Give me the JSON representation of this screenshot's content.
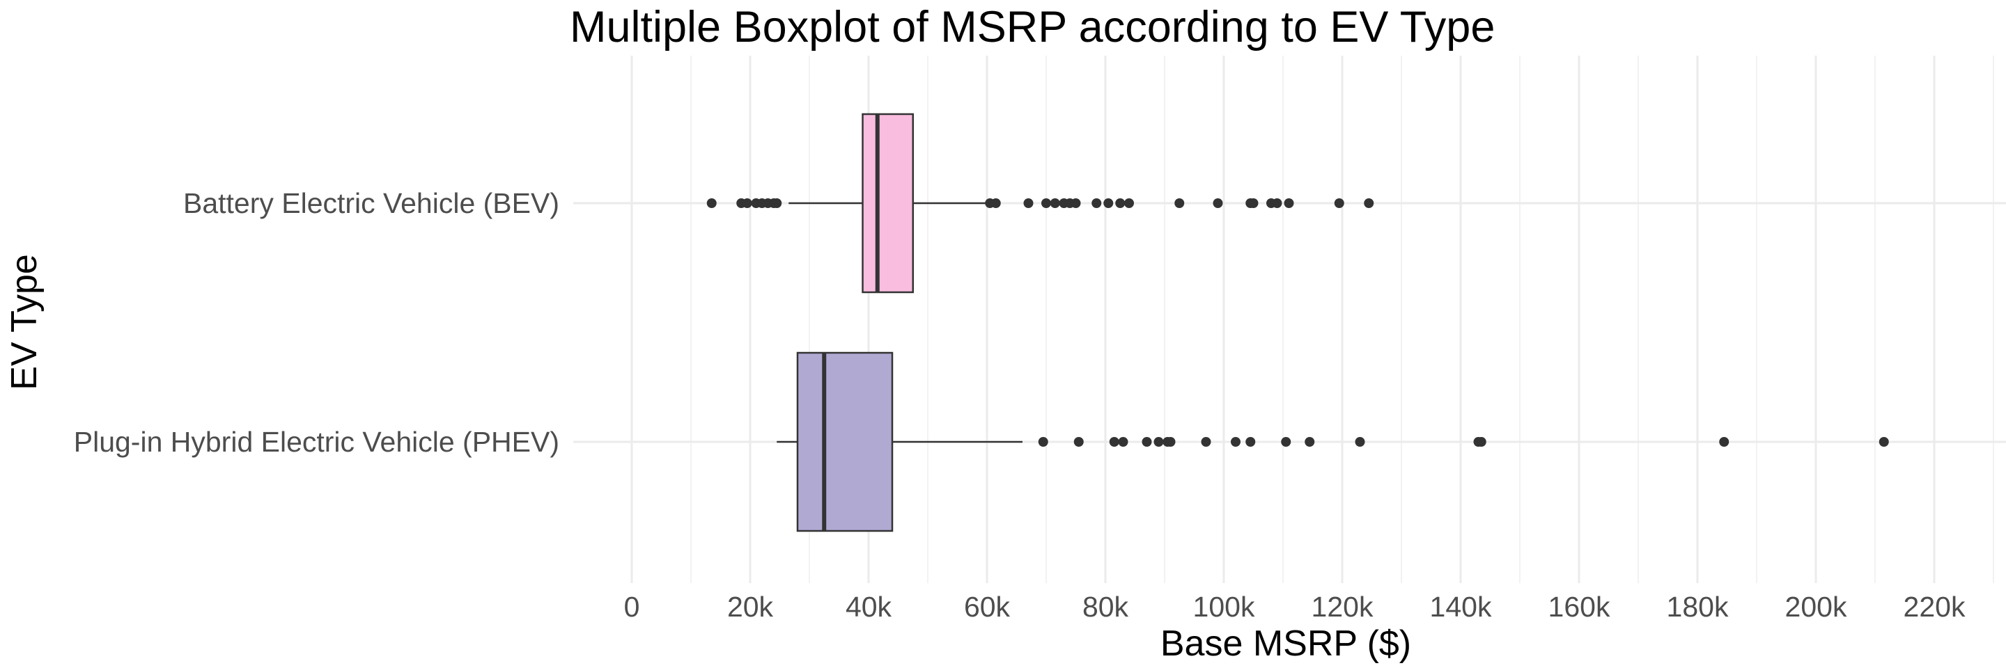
{
  "chart_data": {
    "type": "boxplot",
    "orientation": "horizontal",
    "title": "Multiple Boxplot of MSRP according to EV Type",
    "xlabel": "Base MSRP ($)",
    "ylabel": "EV Type",
    "xlim": [
      -12000,
      230000
    ],
    "x_ticks": [
      0,
      20000,
      40000,
      60000,
      80000,
      100000,
      120000,
      140000,
      160000,
      180000,
      200000,
      220000
    ],
    "x_tick_labels": [
      "0",
      "20k",
      "40k",
      "60k",
      "80k",
      "100k",
      "120k",
      "140k",
      "160k",
      "180k",
      "200k",
      "220k"
    ],
    "grid": true,
    "legend": "none",
    "categories": [
      "Battery Electric Vehicle (BEV)",
      "Plug-in Hybrid Electric Vehicle (PHEV)"
    ],
    "series": [
      {
        "category": "Battery Electric Vehicle (BEV)",
        "color": "#f9bddf",
        "whisker_low": 26500,
        "q1": 39000,
        "median": 41500,
        "q3": 47500,
        "whisker_high": 60000,
        "outliers": [
          13500,
          18500,
          19500,
          21000,
          22000,
          23000,
          24000,
          24500,
          60500,
          61500,
          67000,
          70000,
          71500,
          73000,
          74000,
          75000,
          78500,
          80500,
          82500,
          84000,
          92500,
          99000,
          104500,
          105000,
          108000,
          109000,
          111000,
          119500,
          124500
        ]
      },
      {
        "category": "Plug-in Hybrid Electric Vehicle (PHEV)",
        "color": "#b0aad2",
        "whisker_low": 24500,
        "q1": 28000,
        "median": 32500,
        "q3": 44000,
        "whisker_high": 66000,
        "outliers": [
          69500,
          75500,
          81500,
          83000,
          87000,
          89000,
          90500,
          91000,
          97000,
          102000,
          104500,
          110500,
          114500,
          123000,
          143000,
          143500,
          184500,
          211500
        ]
      }
    ]
  }
}
